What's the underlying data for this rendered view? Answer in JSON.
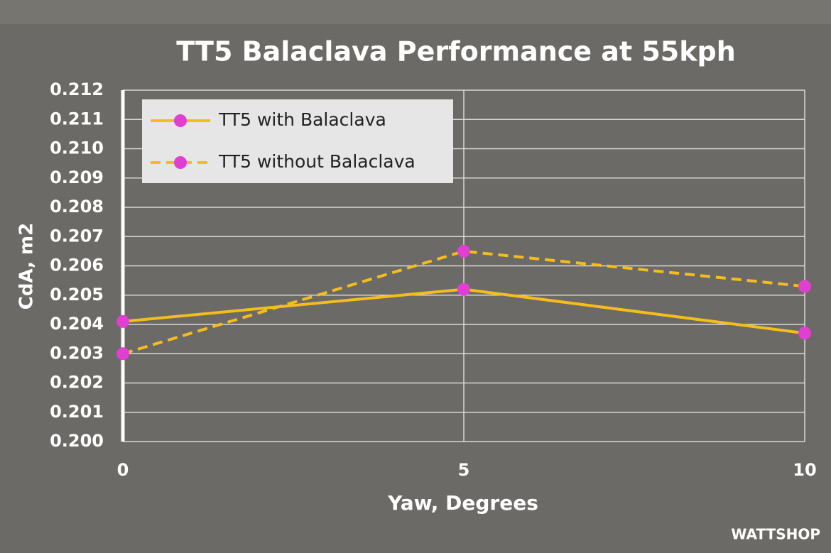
{
  "chart_data": {
    "type": "line",
    "title": "TT5 Balaclava Performance at 55kph",
    "x_label": "Yaw, Degrees",
    "y_label": "CdA, m2",
    "source": "WATTSHOP",
    "x": [
      0,
      5,
      10
    ],
    "series": [
      {
        "name": "TT5 with Balaclava",
        "color": "#f5bd1c",
        "marker_color": "#e03fd2",
        "linestyle": "solid",
        "values": [
          0.2041,
          0.2052,
          0.2037
        ]
      },
      {
        "name": "TT5 without Balaclava",
        "color": "#f5bd1c",
        "marker_color": "#e03fd2",
        "linestyle": "dashed",
        "values": [
          0.203,
          0.2065,
          0.2053
        ]
      }
    ],
    "xlim": [
      0,
      10
    ],
    "xticks": [
      0,
      5,
      10
    ],
    "ylim": [
      0.2,
      0.212
    ],
    "yticks": [
      {
        "value": 0.2,
        "label": "0.200"
      },
      0.201,
      0.202,
      0.203,
      0.204,
      0.205,
      0.206,
      0.207,
      0.208,
      0.209,
      {
        "value": 0.21,
        "label": "0.210"
      },
      0.211,
      0.212
    ],
    "grid": true,
    "legend": "upper left"
  }
}
